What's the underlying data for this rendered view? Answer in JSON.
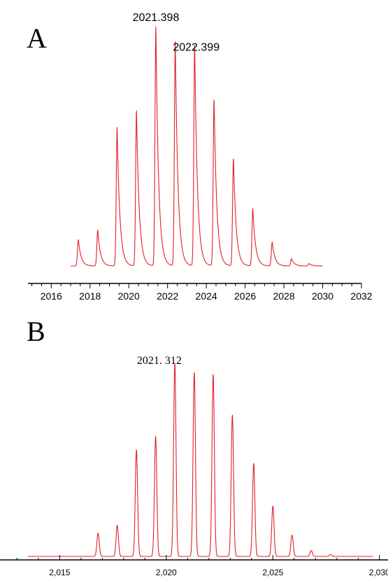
{
  "chart_data": [
    {
      "panel": "A",
      "type": "line",
      "title": "",
      "xlabel": "",
      "ylabel": "",
      "xlim": [
        2014.8,
        2032
      ],
      "ylim": [
        0,
        1
      ],
      "grid": false,
      "x_ticks": [
        2016,
        2018,
        2020,
        2022,
        2024,
        2026,
        2028,
        2030,
        2032
      ],
      "x_tick_labels": [
        "2016",
        "2018",
        "2020",
        "2022",
        "2024",
        "2026",
        "2028",
        "2030",
        "2032"
      ],
      "x_range_plotted": [
        2017.0,
        2030.0
      ],
      "peak_shape": "tailing",
      "peaks": [
        {
          "x": 2017.4,
          "y": 0.11
        },
        {
          "x": 2018.4,
          "y": 0.15
        },
        {
          "x": 2019.4,
          "y": 0.58
        },
        {
          "x": 2020.4,
          "y": 0.65
        },
        {
          "x": 2021.398,
          "y": 1.0
        },
        {
          "x": 2022.399,
          "y": 0.94
        },
        {
          "x": 2023.4,
          "y": 0.93
        },
        {
          "x": 2024.4,
          "y": 0.7
        },
        {
          "x": 2025.4,
          "y": 0.45
        },
        {
          "x": 2026.4,
          "y": 0.24
        },
        {
          "x": 2027.4,
          "y": 0.1
        },
        {
          "x": 2028.4,
          "y": 0.03
        },
        {
          "x": 2029.3,
          "y": 0.01
        }
      ],
      "annotations": [
        {
          "text": "2021.398",
          "x": 2021.398
        },
        {
          "text": "2022.399",
          "x": 2022.399
        }
      ]
    },
    {
      "panel": "B",
      "type": "line",
      "title": "",
      "xlabel": "",
      "ylabel": "",
      "xlim": [
        2012.2,
        2030.4
      ],
      "ylim": [
        0,
        1
      ],
      "grid": false,
      "x_ticks": [
        2015,
        2020,
        2025,
        2030
      ],
      "x_tick_labels": [
        "2,015",
        "2,020",
        "2,025",
        "2,030"
      ],
      "x_range_plotted": [
        2013.5,
        2029.7
      ],
      "peak_shape": "symmetric",
      "peaks": [
        {
          "x": 2016.8,
          "y": 0.12
        },
        {
          "x": 2017.7,
          "y": 0.16
        },
        {
          "x": 2018.6,
          "y": 0.55
        },
        {
          "x": 2019.5,
          "y": 0.62
        },
        {
          "x": 2020.4,
          "y": 1.0
        },
        {
          "x": 2021.312,
          "y": 0.95
        },
        {
          "x": 2022.2,
          "y": 0.94
        },
        {
          "x": 2023.1,
          "y": 0.73
        },
        {
          "x": 2024.1,
          "y": 0.48
        },
        {
          "x": 2025.0,
          "y": 0.26
        },
        {
          "x": 2025.9,
          "y": 0.11
        },
        {
          "x": 2026.8,
          "y": 0.03
        },
        {
          "x": 2027.7,
          "y": 0.01
        }
      ],
      "annotations": [
        {
          "text": "2021. 312",
          "x": 2021.312
        }
      ]
    }
  ],
  "panel_labels": [
    "A",
    "B"
  ],
  "colors": {
    "trace": "#e0202a",
    "axis": "#000000"
  }
}
